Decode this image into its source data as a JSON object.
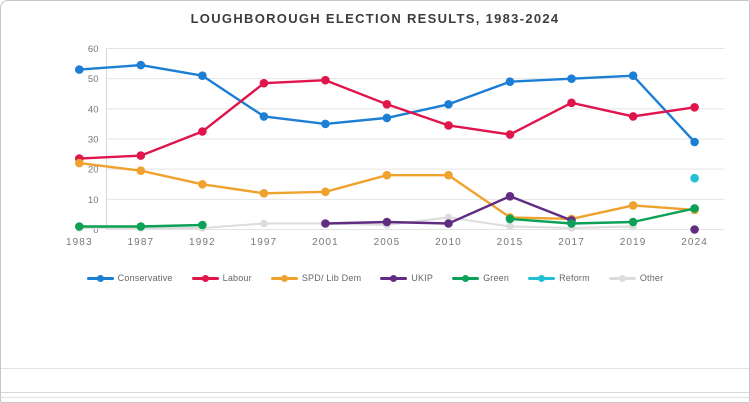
{
  "chart_data": {
    "type": "line",
    "title": "LOUGHBOROUGH ELECTION RESULTS, 1983-2024",
    "categories": [
      "1983",
      "1987",
      "1992",
      "1997",
      "2001",
      "2005",
      "2010",
      "2015",
      "2017",
      "2019",
      "2024"
    ],
    "y_ticks": [
      0,
      10,
      20,
      30,
      40,
      50,
      60
    ],
    "ylim": [
      0,
      60
    ],
    "grid": "horizontal",
    "legend_position": "bottom",
    "series": [
      {
        "name": "Conservative",
        "color": "#1d7fd4",
        "values": [
          53,
          54.5,
          51,
          37.5,
          35,
          37,
          41.5,
          49,
          50,
          51,
          29
        ]
      },
      {
        "name": "Labour",
        "color": "#e0154c",
        "values": [
          23.5,
          24.5,
          32.5,
          48.5,
          49.5,
          41.5,
          34.5,
          31.5,
          42,
          37.5,
          40.5
        ]
      },
      {
        "name": "SPD/ Lib Dem",
        "color": "#f0a22e",
        "values": [
          22,
          19.5,
          15,
          12,
          12.5,
          18,
          18,
          4,
          3.5,
          8,
          6.5
        ]
      },
      {
        "name": "UKIP",
        "color": "#612d83",
        "values": [
          null,
          null,
          null,
          null,
          2,
          2.5,
          2,
          11,
          3,
          null,
          0
        ]
      },
      {
        "name": "Green",
        "color": "#0ca157",
        "values": [
          1,
          1,
          1.5,
          null,
          null,
          null,
          null,
          3.5,
          2,
          2.5,
          7
        ]
      },
      {
        "name": "Reform",
        "color": "#22c0d4",
        "values": [
          null,
          null,
          null,
          null,
          null,
          null,
          null,
          null,
          null,
          null,
          17
        ]
      },
      {
        "name": "Other",
        "color": "#dcdcdc",
        "values": [
          0.5,
          0.5,
          0.5,
          2,
          2,
          1.5,
          4,
          1,
          0.5,
          1,
          null
        ]
      }
    ]
  }
}
